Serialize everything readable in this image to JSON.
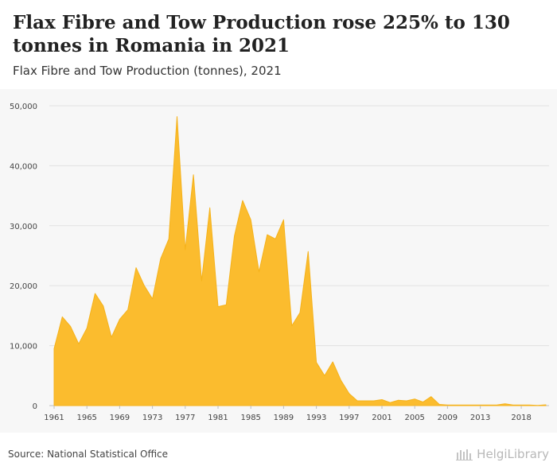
{
  "header": {
    "title": "Flax Fibre and Tow Production rose 225% to 130 tonnes in Romania in 2021",
    "subtitle": "Flax Fibre and Tow Production (tonnes), 2021"
  },
  "footer": {
    "source": "Source: National Statistical Office",
    "brand": "HelgiLibrary"
  },
  "colors": {
    "area_fill": "#fbbc2e",
    "gridline": "#e2e2e2",
    "tick_text": "#444444"
  },
  "chart_data": {
    "type": "area",
    "title": "Flax Fibre and Tow Production rose 225% to 130 tonnes in Romania in 2021",
    "subtitle": "Flax Fibre and Tow Production (tonnes), 2021",
    "xlabel": "",
    "ylabel": "",
    "xlim": [
      1961,
      2021
    ],
    "ylim": [
      0,
      50000
    ],
    "grid": true,
    "legend": "none",
    "y_ticks": [
      0,
      10000,
      20000,
      30000,
      40000,
      50000
    ],
    "y_tick_labels": [
      "0",
      "10,000",
      "20,000",
      "30,000",
      "40,000",
      "50,000"
    ],
    "x_ticks": [
      1961,
      1965,
      1969,
      1973,
      1977,
      1981,
      1985,
      1989,
      1993,
      1997,
      2001,
      2005,
      2009,
      2013,
      2018
    ],
    "x_tick_labels": [
      "1961",
      "1965",
      "1969",
      "1973",
      "1977",
      "1981",
      "1985",
      "1989",
      "1993",
      "1997",
      "2001",
      "2005",
      "2009",
      "2013",
      "2018"
    ],
    "x": [
      1961,
      1962,
      1963,
      1964,
      1965,
      1966,
      1967,
      1968,
      1969,
      1970,
      1971,
      1972,
      1973,
      1974,
      1975,
      1976,
      1977,
      1978,
      1979,
      1980,
      1981,
      1982,
      1983,
      1984,
      1985,
      1986,
      1987,
      1988,
      1989,
      1990,
      1991,
      1992,
      1993,
      1994,
      1995,
      1996,
      1997,
      1998,
      1999,
      2000,
      2001,
      2002,
      2003,
      2004,
      2005,
      2006,
      2007,
      2008,
      2009,
      2010,
      2011,
      2012,
      2013,
      2014,
      2015,
      2016,
      2017,
      2018,
      2019,
      2020,
      2021
    ],
    "series": [
      {
        "values": [
          9500,
          14800,
          13200,
          10300,
          12900,
          18700,
          16600,
          11400,
          14400,
          16000,
          23000,
          20000,
          17800,
          24500,
          27800,
          48200,
          26000,
          38500,
          20800,
          33000,
          16500,
          16800,
          28300,
          34200,
          31000,
          22300,
          28500,
          27800,
          31000,
          13300,
          15500,
          25700,
          7200,
          5000,
          7300,
          4200,
          2000,
          800,
          800,
          800,
          1000,
          500,
          900,
          800,
          1100,
          600,
          1500,
          200,
          100,
          100,
          100,
          100,
          100,
          100,
          100,
          300,
          100,
          100,
          100,
          40,
          130
        ]
      }
    ]
  }
}
